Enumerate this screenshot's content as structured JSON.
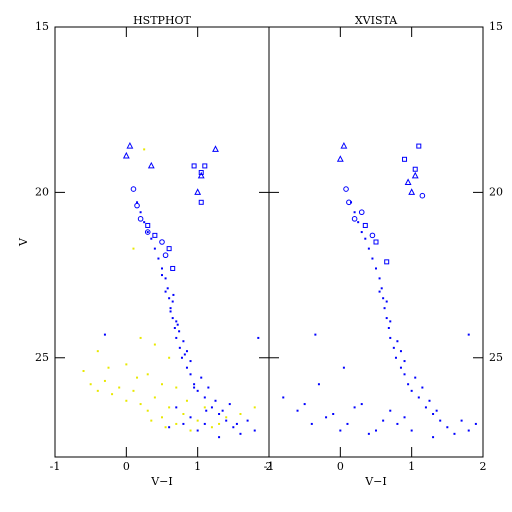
{
  "chart_data": [
    {
      "type": "scatter",
      "title": "HSTPHOT",
      "x_label": "V−I",
      "y_label": "V",
      "xlim": [
        -1,
        2
      ],
      "ylim": [
        28,
        15
      ],
      "xticks": [
        -1,
        0,
        1,
        2
      ],
      "yticks": [
        15,
        20,
        25
      ],
      "ytick_side": "left",
      "series": [
        {
          "color": "#0000ff",
          "marker": "dot",
          "x": [
            0.15,
            0.2,
            0.25,
            0.3,
            0.35,
            0.4,
            0.45,
            0.5,
            0.55,
            0.58,
            0.6,
            0.62,
            0.65,
            0.68,
            0.7,
            0.75,
            0.78,
            0.85,
            0.9,
            0.95,
            1.0,
            1.1,
            1.2,
            1.3,
            1.4,
            1.5,
            1.6,
            0.55,
            0.65,
            0.7,
            0.8,
            0.85,
            0.9,
            1.05,
            1.15,
            1.25,
            1.35,
            0.9,
            0.8,
            1.0,
            1.3,
            1.7,
            1.8,
            -0.3,
            1.85,
            0.7,
            0.6,
            1.1,
            0.62,
            0.72,
            0.82,
            0.95,
            1.12,
            1.45,
            1.55,
            0.5,
            0.66,
            0.74
          ],
          "values": [
            20.3,
            20.6,
            20.9,
            21.2,
            21.4,
            21.7,
            22.0,
            22.3,
            22.6,
            22.9,
            23.2,
            23.5,
            23.8,
            24.1,
            24.4,
            24.7,
            25.0,
            25.3,
            25.5,
            25.8,
            26.0,
            26.2,
            26.5,
            26.7,
            26.9,
            27.1,
            27.3,
            23.0,
            23.3,
            23.9,
            24.5,
            24.8,
            25.1,
            25.6,
            25.9,
            26.3,
            26.6,
            26.8,
            27.0,
            27.2,
            27.4,
            26.9,
            27.2,
            24.3,
            24.4,
            26.5,
            27.1,
            27.0,
            23.6,
            24.0,
            24.9,
            25.9,
            26.6,
            26.4,
            27.0,
            22.5,
            23.1,
            24.2
          ]
        },
        {
          "color": "#e8e800",
          "marker": "dot",
          "x": [
            -0.6,
            -0.5,
            -0.4,
            -0.3,
            -0.2,
            -0.1,
            0.0,
            0.1,
            0.2,
            0.3,
            0.4,
            0.5,
            0.6,
            0.7,
            0.8,
            0.9,
            1.0,
            1.2,
            1.4,
            1.6,
            1.8,
            0.2,
            0.4,
            0.6,
            0.0,
            -0.4,
            0.3,
            0.5,
            0.7,
            0.25,
            0.1,
            -0.25,
            0.15,
            0.35,
            0.55,
            0.85,
            1.1,
            1.3
          ],
          "values": [
            25.4,
            25.8,
            26.0,
            25.7,
            26.1,
            25.9,
            26.3,
            26.0,
            26.4,
            26.6,
            26.2,
            26.8,
            26.5,
            27.0,
            26.7,
            27.2,
            26.9,
            27.1,
            26.8,
            26.7,
            26.5,
            24.4,
            24.6,
            25.0,
            25.2,
            24.8,
            25.5,
            25.8,
            25.9,
            18.7,
            21.7,
            25.3,
            25.6,
            26.9,
            27.1,
            26.3,
            26.5,
            27.0
          ]
        },
        {
          "color": "#0000ff",
          "marker": "triangle",
          "x": [
            0.05,
            0.35,
            0.0,
            1.0,
            1.05,
            1.25
          ],
          "values": [
            18.6,
            19.2,
            18.9,
            20.0,
            19.5,
            18.7
          ]
        },
        {
          "color": "#0000ff",
          "marker": "square",
          "x": [
            0.95,
            1.05,
            1.1,
            1.05,
            0.3,
            0.6,
            0.65,
            0.4
          ],
          "values": [
            19.2,
            19.4,
            19.2,
            20.3,
            21.0,
            21.7,
            22.3,
            21.3
          ]
        },
        {
          "color": "#0000ff",
          "marker": "circle",
          "x": [
            0.1,
            0.15,
            0.2,
            0.3,
            0.5,
            0.55
          ],
          "values": [
            19.9,
            20.4,
            20.8,
            21.2,
            21.5,
            21.9
          ]
        }
      ]
    },
    {
      "type": "scatter",
      "title": "XVISTA",
      "x_label": "V−I",
      "xlim": [
        -1,
        2
      ],
      "ylim": [
        28,
        15
      ],
      "xticks": [
        -1,
        0,
        1,
        2
      ],
      "yticks": [
        15,
        20,
        25
      ],
      "ytick_side": "right",
      "series": [
        {
          "color": "#0000ff",
          "marker": "dot",
          "x": [
            0.15,
            0.2,
            0.25,
            0.3,
            0.35,
            0.4,
            0.45,
            0.5,
            0.55,
            0.58,
            0.6,
            0.62,
            0.65,
            0.68,
            0.7,
            0.75,
            0.78,
            0.85,
            0.9,
            0.95,
            1.0,
            1.1,
            1.2,
            1.3,
            1.4,
            1.5,
            1.6,
            0.55,
            0.65,
            0.7,
            0.8,
            0.85,
            0.9,
            1.05,
            1.15,
            1.25,
            1.35,
            0.9,
            0.8,
            1.0,
            1.3,
            1.7,
            1.8,
            -0.35,
            1.8,
            -0.6,
            -0.4,
            -0.2,
            0.0,
            0.2,
            0.4,
            0.6,
            -0.8,
            -0.5,
            -0.1,
            0.1,
            0.3,
            0.5,
            0.7,
            -0.3,
            0.05,
            1.9
          ],
          "values": [
            20.3,
            20.6,
            20.9,
            21.2,
            21.4,
            21.7,
            22.0,
            22.3,
            22.6,
            22.9,
            23.2,
            23.5,
            23.8,
            24.1,
            24.4,
            24.7,
            25.0,
            25.3,
            25.5,
            25.8,
            26.0,
            26.2,
            26.5,
            26.7,
            26.9,
            27.1,
            27.3,
            23.0,
            23.3,
            23.9,
            24.5,
            24.8,
            25.1,
            25.6,
            25.9,
            26.3,
            26.6,
            26.8,
            27.0,
            27.2,
            27.4,
            26.9,
            27.2,
            24.3,
            24.3,
            26.6,
            27.0,
            26.8,
            27.2,
            26.5,
            27.3,
            26.9,
            26.2,
            26.4,
            26.7,
            27.0,
            26.4,
            27.2,
            26.6,
            25.8,
            25.3,
            27.0
          ]
        },
        {
          "color": "#0000ff",
          "marker": "triangle",
          "x": [
            0.05,
            0.0,
            1.0,
            1.05,
            0.95
          ],
          "values": [
            18.6,
            19.0,
            20.0,
            19.5,
            19.7
          ]
        },
        {
          "color": "#0000ff",
          "marker": "square",
          "x": [
            0.9,
            1.05,
            1.1,
            0.35,
            0.5,
            0.65
          ],
          "values": [
            19.0,
            19.3,
            18.6,
            21.0,
            21.5,
            22.1
          ]
        },
        {
          "color": "#0000ff",
          "marker": "circle",
          "x": [
            0.08,
            0.12,
            0.2,
            0.3,
            0.45,
            1.15
          ],
          "values": [
            19.9,
            20.3,
            20.8,
            20.6,
            21.3,
            20.1
          ]
        }
      ]
    }
  ]
}
